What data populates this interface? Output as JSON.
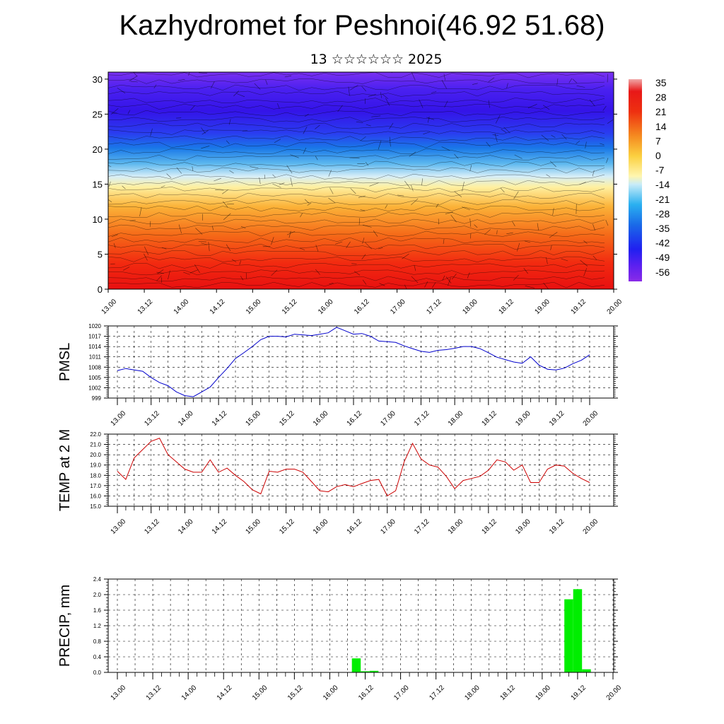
{
  "header": {
    "title": "Kazhydromet for Peshnoi(46.92 51.68)",
    "subtitle": "13 ☆☆☆☆☆☆ 2025"
  },
  "colorbar": {
    "labels": [
      "35",
      "28",
      "21",
      "14",
      "7",
      "0",
      "-7",
      "-14",
      "-21",
      "-28",
      "-35",
      "-42",
      "-49",
      "-56"
    ]
  },
  "chart_data": [
    {
      "type": "heatmap",
      "title": "",
      "ylim": [
        0,
        31
      ],
      "yticks": [
        "0",
        "5",
        "10",
        "15",
        "20",
        "25",
        "30"
      ],
      "xticks": [
        "13.00",
        "13.12",
        "14.00",
        "14.12",
        "15.00",
        "15.12",
        "16.00",
        "16.12",
        "17.00",
        "17.12",
        "18.00",
        "18.12",
        "19.00",
        "19.12",
        "20.00"
      ],
      "colormap": "temperature, -56 (violet) to 35 (light red)",
      "overlay": "wind streamlines / barbs",
      "zones": [
        {
          "from": 0,
          "to": 8,
          "value": 28
        },
        {
          "from": 8,
          "to": 15,
          "value": 7
        },
        {
          "from": 15,
          "to": 18,
          "value": -14
        },
        {
          "from": 18,
          "to": 22,
          "value": -35
        },
        {
          "from": 22,
          "to": 31,
          "value": -56
        }
      ]
    },
    {
      "type": "line",
      "ylabel": "PMSL",
      "ylim": [
        999,
        1020
      ],
      "yticks": [
        "999",
        "1002",
        "1005",
        "1008",
        "1011",
        "1014",
        "1017",
        "1020"
      ],
      "xticks": [
        "13.00",
        "13.12",
        "14.00",
        "14.12",
        "15.00",
        "15.12",
        "16.00",
        "16.12",
        "17.00",
        "17.12",
        "18.00",
        "18.12",
        "19.00",
        "19.12",
        "20.00"
      ],
      "color": "#0000cc",
      "values": [
        1007,
        1007.6,
        1007.2,
        1006.8,
        1005,
        1003.5,
        1002.6,
        1000.8,
        999.7,
        999.4,
        1000.8,
        1002.2,
        1005,
        1007.6,
        1010.5,
        1012.2,
        1014,
        1016,
        1017,
        1017,
        1016.8,
        1017.6,
        1017.4,
        1017.2,
        1017.6,
        1018,
        1019.6,
        1018.6,
        1017.6,
        1017.8,
        1017,
        1015.6,
        1015.4,
        1015.2,
        1014.2,
        1013.4,
        1012.6,
        1012.3,
        1012.9,
        1013.1,
        1013.5,
        1014,
        1014,
        1013.4,
        1012.2,
        1010.9,
        1010.2,
        1009.5,
        1009.1,
        1011,
        1008.6,
        1007.4,
        1007.2,
        1007.7,
        1009,
        1010,
        1011.6
      ]
    },
    {
      "type": "line",
      "ylabel": "TEMP at 2 M",
      "ylim": [
        15.0,
        22.0
      ],
      "yticks": [
        "15.0",
        "16.0",
        "17.0",
        "18.0",
        "19.0",
        "20.0",
        "21.0",
        "22.0"
      ],
      "xticks": [
        "13.00",
        "13.12",
        "14.00",
        "14.12",
        "15.00",
        "15.12",
        "16.00",
        "16.12",
        "17.00",
        "17.12",
        "18.00",
        "18.12",
        "19.00",
        "19.12",
        "20.00"
      ],
      "color": "#cc0000",
      "values": [
        18.4,
        17.6,
        19.7,
        20.5,
        21.3,
        21.6,
        20,
        19.3,
        18.6,
        18.3,
        18.3,
        19.5,
        18.3,
        18.7,
        18,
        17.4,
        16.6,
        16.2,
        18.4,
        18.3,
        18.6,
        18.6,
        18.3,
        17.4,
        16.5,
        16.4,
        16.9,
        17.1,
        16.9,
        17.2,
        17.5,
        17.6,
        16,
        16.5,
        19.3,
        21.1,
        19.6,
        19,
        18.8,
        17.9,
        16.7,
        17.5,
        17.7,
        17.9,
        18.5,
        19.5,
        19.3,
        18.5,
        19,
        17.3,
        17.3,
        18.6,
        19,
        18.9,
        18.2,
        17.7,
        17.3
      ]
    },
    {
      "type": "bar",
      "ylabel": "PRECIP, mm",
      "ylim": [
        0.0,
        2.4
      ],
      "yticks": [
        "0.0",
        "0.4",
        "0.8",
        "1.2",
        "1.6",
        "2.0",
        "2.4"
      ],
      "xticks": [
        "13.00",
        "13.12",
        "14.00",
        "14.12",
        "15.00",
        "15.12",
        "16.00",
        "16.12",
        "17.00",
        "17.12",
        "18.00",
        "18.12",
        "19.00",
        "19.12",
        "20.00"
      ],
      "color": "#00ee00",
      "values": [
        0,
        0,
        0,
        0,
        0,
        0,
        0,
        0,
        0,
        0,
        0,
        0,
        0,
        0,
        0,
        0,
        0,
        0,
        0,
        0,
        0,
        0,
        0,
        0,
        0,
        0,
        0,
        0.36,
        0.03,
        0.04,
        0,
        0,
        0,
        0,
        0,
        0,
        0,
        0,
        0,
        0,
        0,
        0,
        0,
        0,
        0,
        0,
        0,
        0,
        0,
        0,
        0,
        1.88,
        2.14,
        0.08,
        0,
        0,
        0
      ]
    }
  ]
}
